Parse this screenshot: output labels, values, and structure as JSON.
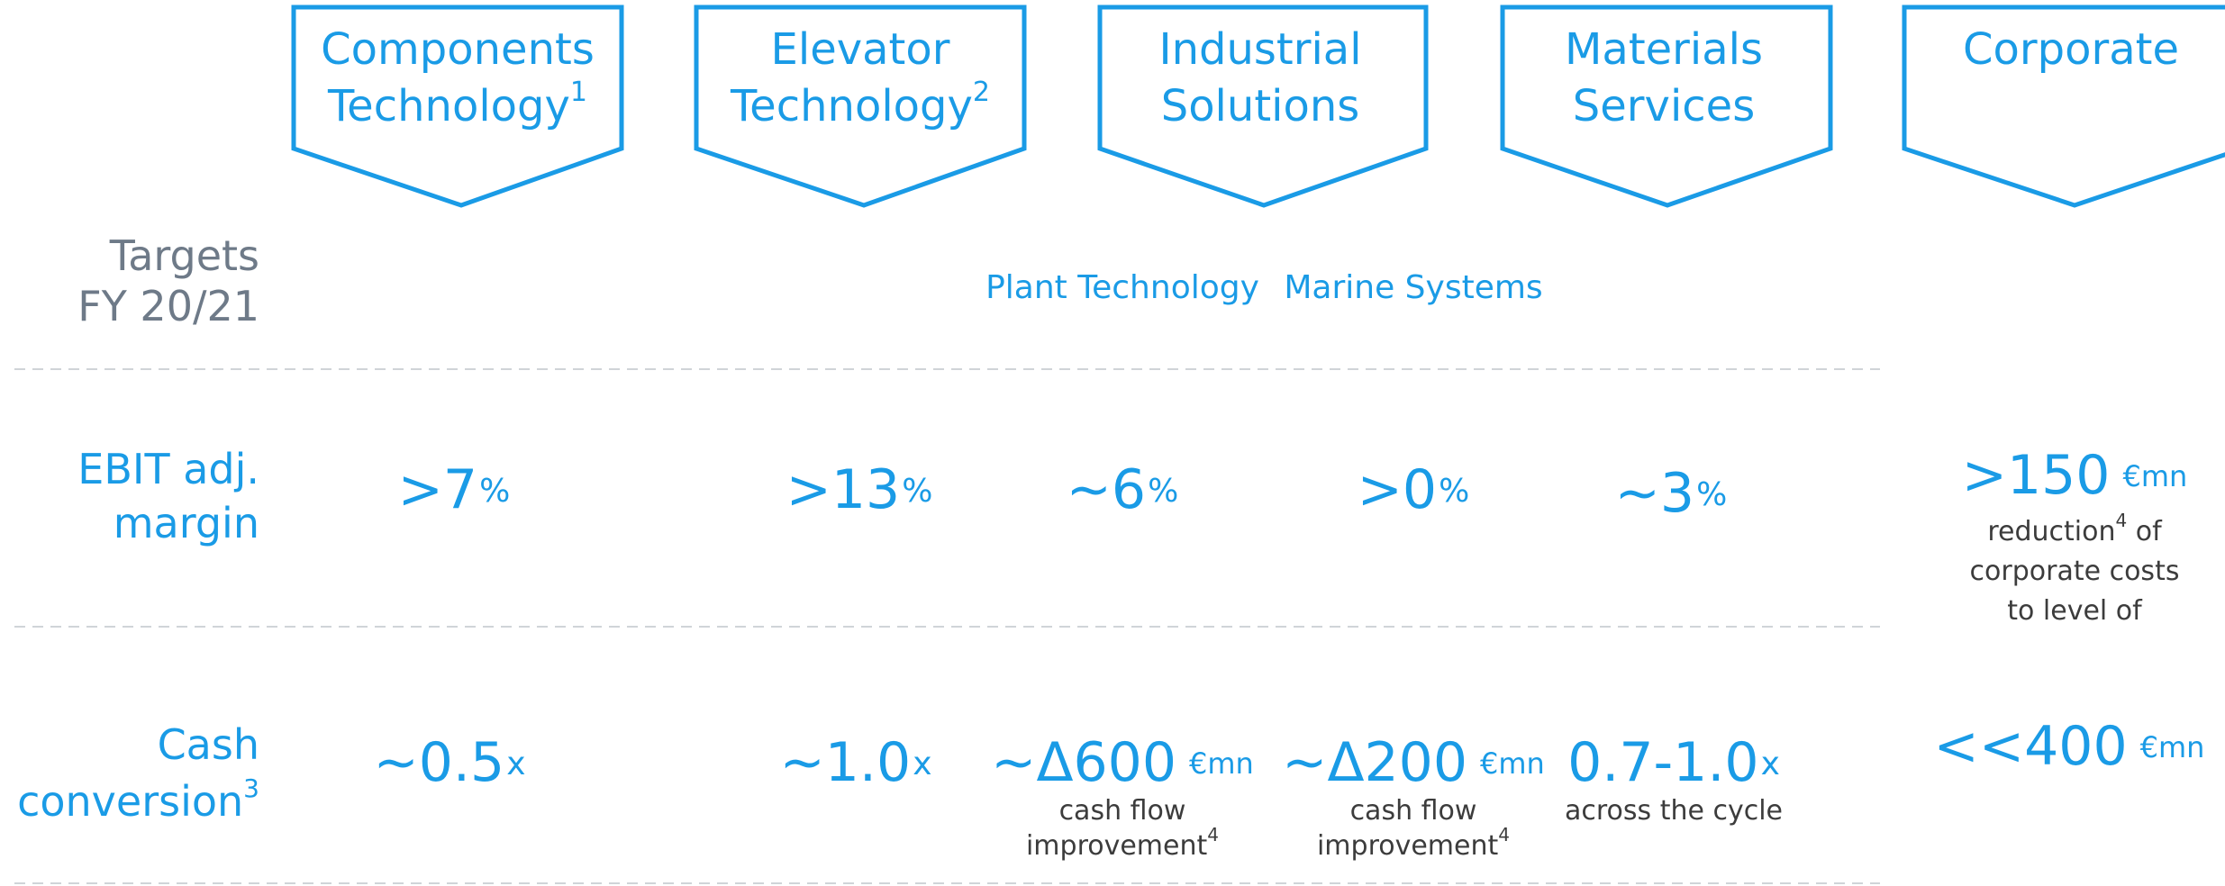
{
  "columns": [
    {
      "title": [
        "Components",
        "Technology"
      ],
      "note": "1"
    },
    {
      "title": [
        "Elevator",
        "Technology"
      ],
      "note": "2"
    },
    {
      "title": [
        "Industrial",
        "Solutions"
      ]
    },
    {
      "title": [
        "Materials",
        "Services"
      ]
    },
    {
      "title": [
        "Corporate"
      ]
    }
  ],
  "row_header": [
    "Targets",
    "FY 20/21"
  ],
  "subcolumns": [
    "Plant Technology",
    "Marine Systems"
  ],
  "rows": [
    {
      "label": [
        "EBIT adj.",
        "margin"
      ],
      "cells": [
        {
          "value": ">7",
          "unit": "%"
        },
        {
          "value": ">13",
          "unit": "%"
        },
        {
          "value": "~6",
          "unit": "%"
        },
        {
          "value": ">0",
          "unit": "%"
        },
        {
          "value": "~3",
          "unit": "%"
        },
        {
          "value": ">150",
          "unit": "€mn",
          "caption": [
            {
              "text": "reduction",
              "note": "4",
              "tail": " of"
            },
            {
              "text": "corporate costs"
            },
            {
              "text": "to level of"
            }
          ]
        }
      ]
    },
    {
      "label": [
        "Cash",
        "conversion"
      ],
      "note": "3",
      "cells": [
        {
          "value": "~0.5",
          "unit": "x"
        },
        {
          "value": "~1.0",
          "unit": "x"
        },
        {
          "value": "~Δ600",
          "unit": "€mn",
          "caption": [
            {
              "text": "cash flow"
            },
            {
              "text": "improvement",
              "note": "4"
            }
          ]
        },
        {
          "value": "~Δ200",
          "unit": "€mn",
          "caption": [
            {
              "text": "cash flow"
            },
            {
              "text": "improvement",
              "note": "4"
            }
          ]
        },
        {
          "value": "0.7-1.0",
          "unit": "x",
          "caption": [
            {
              "text": "across the cycle"
            }
          ]
        },
        {
          "value": "<<400",
          "unit": "€mn"
        }
      ]
    }
  ]
}
